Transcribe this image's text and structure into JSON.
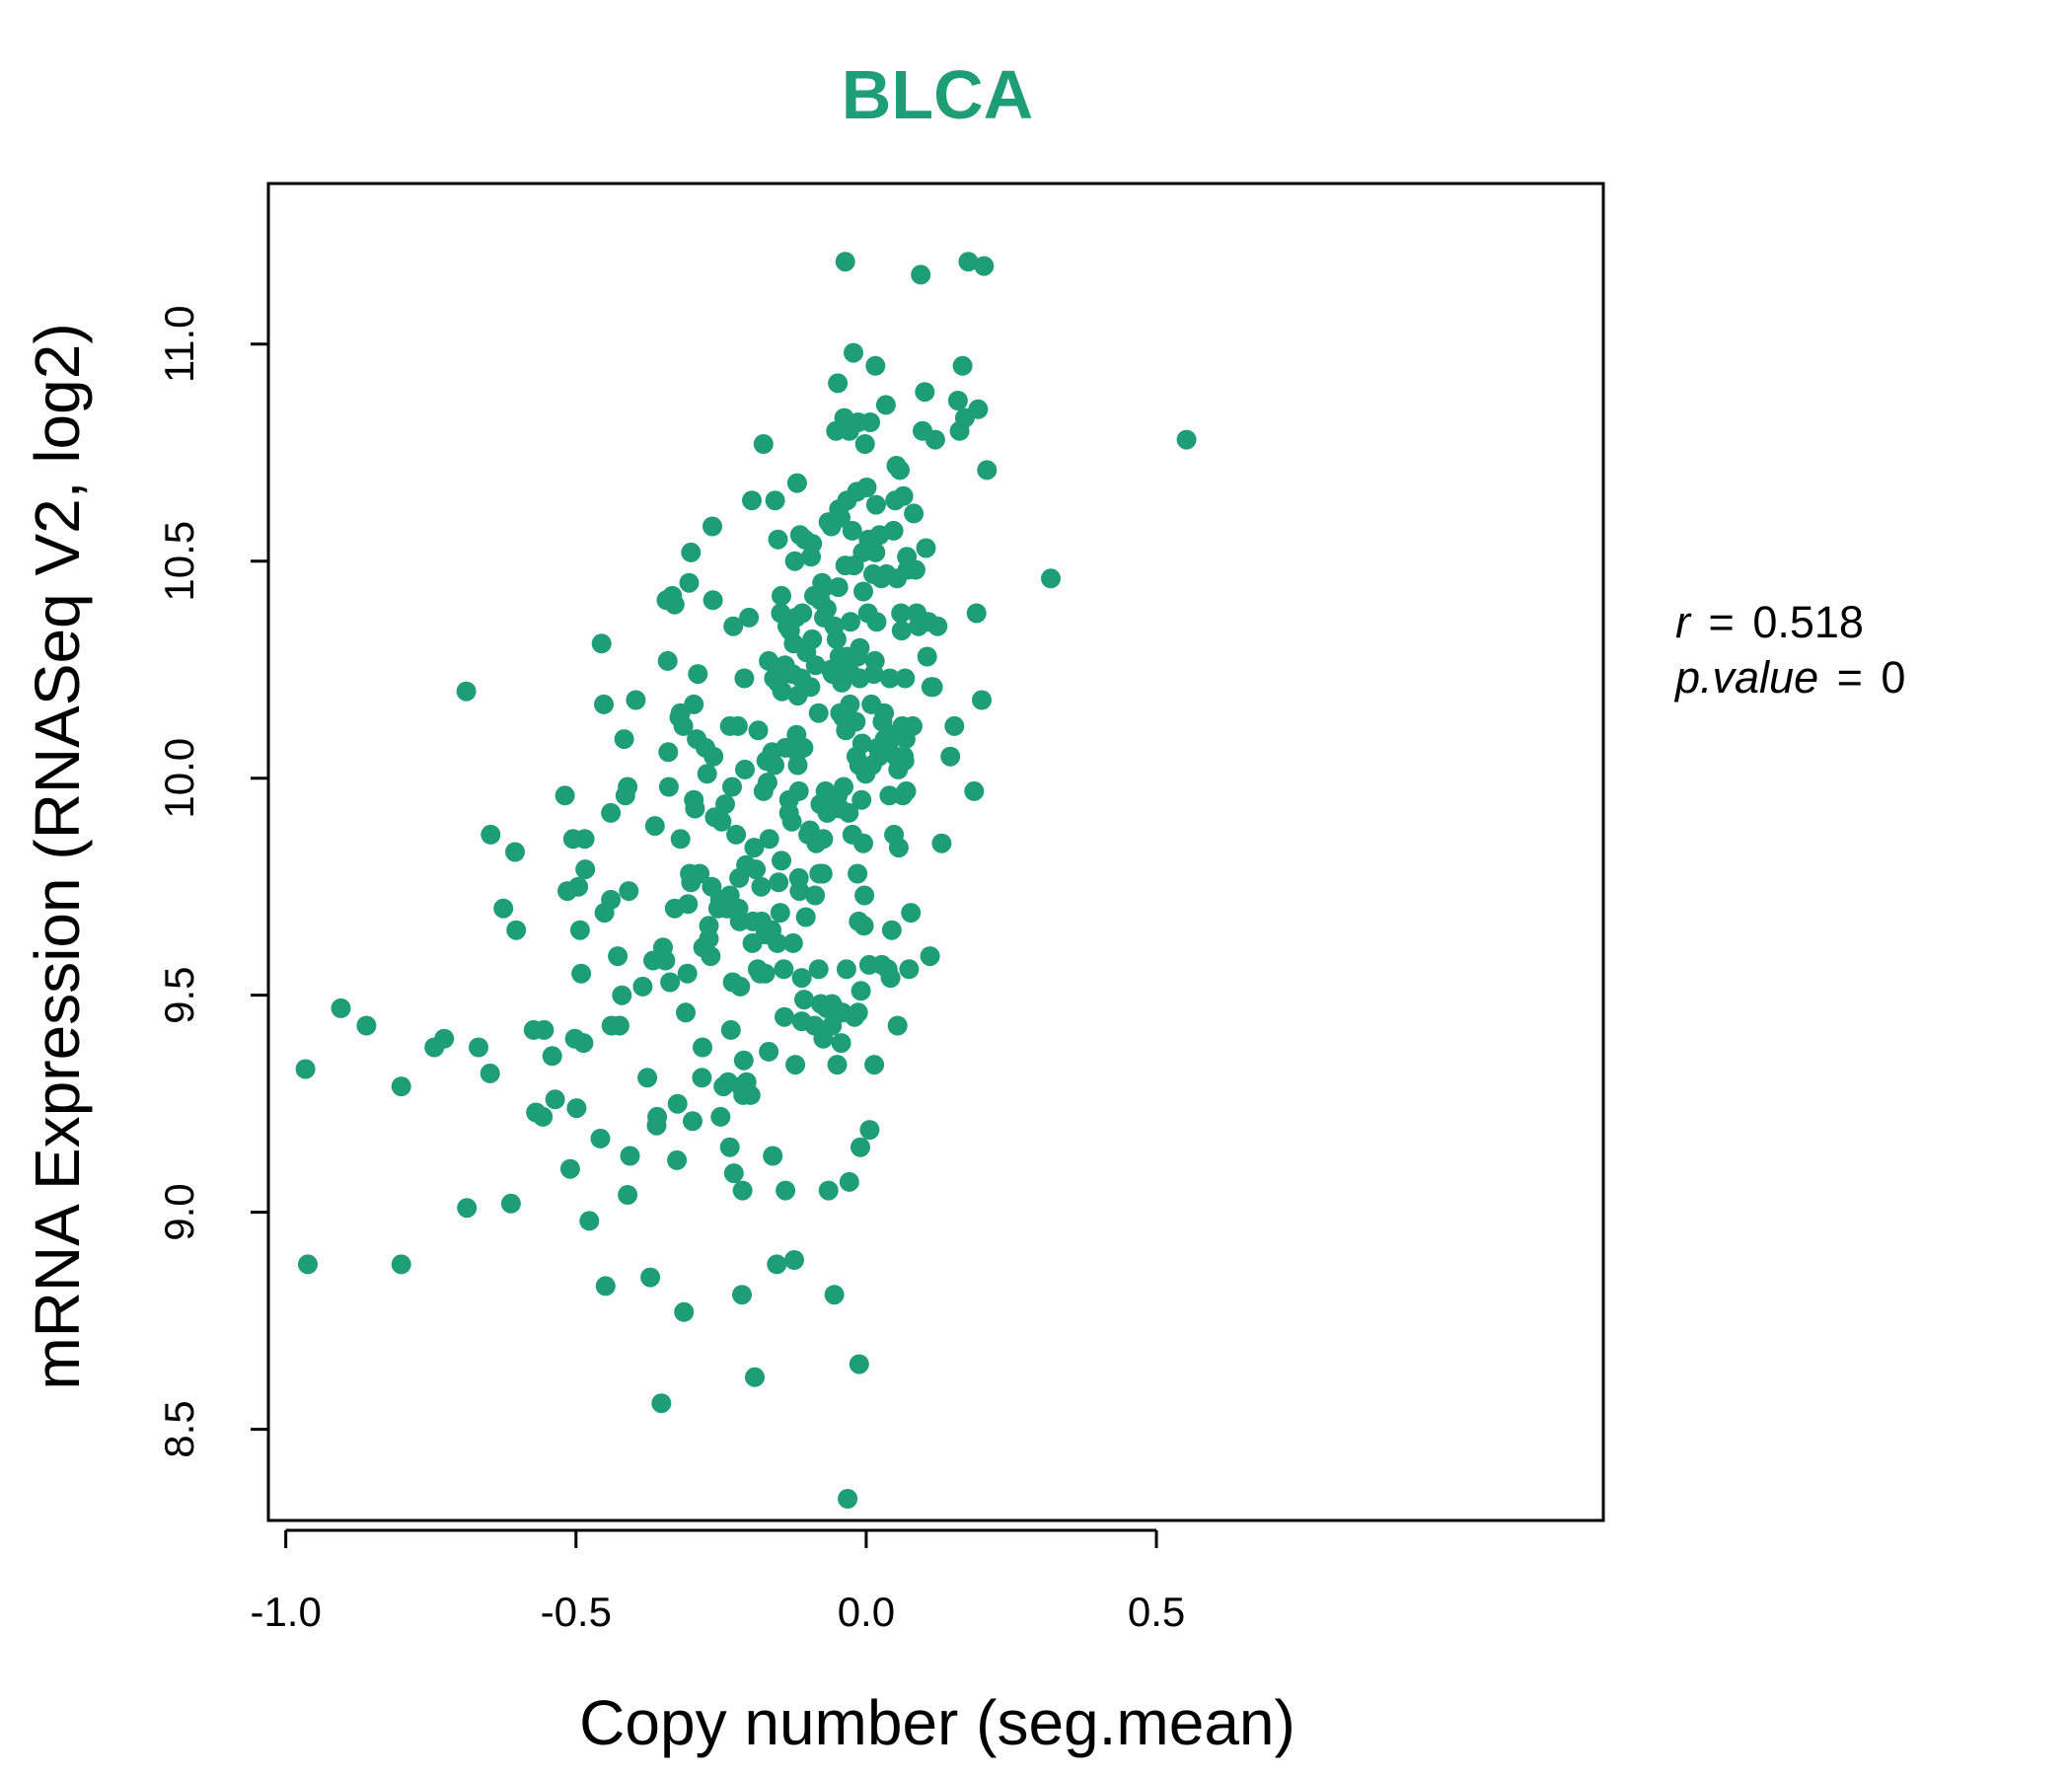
{
  "chart_data": {
    "type": "scatter",
    "title": "BLCA",
    "xlabel": "Copy number (seg.mean)",
    "ylabel": "mRNA Expression (RNASeq V2, log2)",
    "xlim": [
      -1.03,
      1.27
    ],
    "ylim": [
      8.29,
      11.37
    ],
    "x_ticks": [
      -1.0,
      -0.5,
      0.0,
      0.5
    ],
    "x_tick_labels": [
      "-1.0",
      "-0.5",
      "0.0",
      "0.5"
    ],
    "y_ticks": [
      8.5,
      9.0,
      9.5,
      10.0,
      10.5,
      11.0
    ],
    "y_tick_labels": [
      "8.5",
      "9.0",
      "9.5",
      "10.0",
      "10.5",
      "11.0"
    ],
    "grid": false,
    "legend": "none",
    "point_color": "#1E9E74",
    "stats": {
      "r_label": "r",
      "r_value": "0.518",
      "p_label": "p.value",
      "p_value": "0"
    },
    "points": [
      [
        -0.966,
        9.33
      ],
      [
        -0.962,
        8.88
      ],
      [
        -0.905,
        9.47
      ],
      [
        -0.861,
        9.43
      ],
      [
        -0.801,
        9.29
      ],
      [
        -0.801,
        8.88
      ],
      [
        -0.744,
        9.38
      ],
      [
        -0.727,
        9.4
      ],
      [
        -0.689,
        10.2
      ],
      [
        -0.688,
        9.01
      ],
      [
        -0.668,
        9.38
      ],
      [
        -0.648,
        9.32
      ],
      [
        -0.647,
        9.87
      ],
      [
        -0.625,
        9.7
      ],
      [
        -0.612,
        9.02
      ],
      [
        -0.605,
        9.83
      ],
      [
        -0.603,
        9.65
      ],
      [
        -0.573,
        9.42
      ],
      [
        -0.569,
        9.23
      ],
      [
        -0.555,
        9.42
      ],
      [
        -0.557,
        9.22
      ],
      [
        -0.541,
        9.36
      ],
      [
        -0.536,
        9.26
      ],
      [
        -0.519,
        9.96
      ],
      [
        -0.515,
        9.74
      ],
      [
        -0.51,
        9.1
      ],
      [
        -0.505,
        9.86
      ],
      [
        -0.502,
        9.4
      ],
      [
        -0.499,
        9.24
      ],
      [
        -0.496,
        9.75
      ],
      [
        -0.493,
        9.65
      ],
      [
        -0.491,
        9.55
      ],
      [
        -0.487,
        9.39
      ],
      [
        -0.485,
        9.86
      ],
      [
        -0.484,
        9.79
      ],
      [
        -0.477,
        8.98
      ],
      [
        -0.456,
        10.31
      ],
      [
        -0.452,
        10.17
      ],
      [
        -0.458,
        9.17
      ],
      [
        -0.449,
        8.83
      ],
      [
        -0.451,
        9.69
      ],
      [
        -0.44,
        9.92
      ],
      [
        -0.439,
        9.43
      ],
      [
        -0.44,
        9.72
      ],
      [
        -0.425,
        9.43
      ],
      [
        -0.428,
        9.59
      ],
      [
        -0.421,
        9.5
      ],
      [
        -0.417,
        10.09
      ],
      [
        -0.415,
        9.96
      ],
      [
        -0.411,
        9.98
      ],
      [
        -0.409,
        9.74
      ],
      [
        -0.411,
        9.04
      ],
      [
        -0.407,
        9.13
      ],
      [
        -0.397,
        10.18
      ],
      [
        -0.385,
        9.52
      ],
      [
        -0.377,
        9.31
      ],
      [
        -0.372,
        8.85
      ],
      [
        -0.367,
        9.58
      ],
      [
        -0.364,
        9.89
      ],
      [
        -0.361,
        9.2
      ],
      [
        -0.36,
        9.22
      ],
      [
        -0.353,
        8.56
      ],
      [
        -0.35,
        9.61
      ],
      [
        -0.346,
        9.58
      ],
      [
        -0.344,
        10.41
      ],
      [
        -0.342,
        10.27
      ],
      [
        -0.341,
        10.06
      ],
      [
        -0.34,
        9.98
      ],
      [
        -0.338,
        9.53
      ],
      [
        -0.334,
        10.42
      ],
      [
        -0.33,
        10.4
      ],
      [
        -0.33,
        9.7
      ],
      [
        -0.326,
        9.12
      ],
      [
        -0.325,
        9.25
      ],
      [
        -0.322,
        10.14
      ],
      [
        -0.32,
        10.15
      ],
      [
        -0.32,
        9.86
      ],
      [
        -0.315,
        10.12
      ],
      [
        -0.314,
        8.77
      ],
      [
        -0.311,
        9.46
      ],
      [
        -0.308,
        9.55
      ],
      [
        -0.307,
        9.71
      ],
      [
        -0.305,
        10.45
      ],
      [
        -0.304,
        9.78
      ],
      [
        -0.302,
        9.76
      ],
      [
        -0.302,
        10.52
      ],
      [
        -0.299,
        9.21
      ],
      [
        -0.297,
        10.17
      ],
      [
        -0.297,
        9.95
      ],
      [
        -0.295,
        9.93
      ],
      [
        -0.292,
        10.09
      ],
      [
        -0.29,
        10.24
      ],
      [
        -0.287,
        9.78
      ],
      [
        -0.283,
        9.31
      ],
      [
        -0.282,
        9.38
      ],
      [
        -0.281,
        9.61
      ],
      [
        -0.277,
        10.07
      ],
      [
        -0.274,
        10.01
      ],
      [
        -0.271,
        9.63
      ],
      [
        -0.271,
        9.66
      ],
      [
        -0.268,
        9.59
      ],
      [
        -0.266,
        9.75
      ],
      [
        -0.265,
        10.58
      ],
      [
        -0.264,
        10.41
      ],
      [
        -0.263,
        10.05
      ],
      [
        -0.261,
        9.91
      ],
      [
        -0.255,
        9.7
      ],
      [
        -0.252,
        9.72
      ],
      [
        -0.251,
        9.22
      ],
      [
        -0.249,
        9.9
      ],
      [
        -0.246,
        9.29
      ],
      [
        -0.243,
        9.94
      ],
      [
        -0.24,
        9.7
      ],
      [
        -0.238,
        9.3
      ],
      [
        -0.235,
        9.15
      ],
      [
        -0.235,
        10.12
      ],
      [
        -0.235,
        9.73
      ],
      [
        -0.233,
        9.42
      ],
      [
        -0.232,
        9.7
      ],
      [
        -0.231,
        9.98
      ],
      [
        -0.23,
        9.53
      ],
      [
        -0.229,
        10.35
      ],
      [
        -0.228,
        9.09
      ],
      [
        -0.224,
        9.87
      ],
      [
        -0.221,
        10.12
      ],
      [
        -0.22,
        9.7
      ],
      [
        -0.219,
        9.77
      ],
      [
        -0.218,
        9.67
      ],
      [
        -0.217,
        9.52
      ],
      [
        -0.216,
        9.29
      ],
      [
        -0.214,
        8.81
      ],
      [
        -0.213,
        9.05
      ],
      [
        -0.212,
        9.27
      ],
      [
        -0.211,
        9.35
      ],
      [
        -0.21,
        10.23
      ],
      [
        -0.209,
        10.02
      ],
      [
        -0.207,
        9.8
      ],
      [
        -0.206,
        9.3
      ],
      [
        -0.202,
        10.37
      ],
      [
        -0.199,
        9.27
      ],
      [
        -0.197,
        10.64
      ],
      [
        -0.196,
        9.62
      ],
      [
        -0.195,
        9.67
      ],
      [
        -0.193,
        9.84
      ],
      [
        -0.192,
        8.62
      ],
      [
        -0.19,
        9.79
      ],
      [
        -0.187,
        9.56
      ],
      [
        -0.186,
        10.11
      ],
      [
        -0.183,
        9.55
      ],
      [
        -0.18,
        9.67
      ],
      [
        -0.181,
        9.75
      ],
      [
        -0.177,
        10.77
      ],
      [
        -0.177,
        9.97
      ],
      [
        -0.174,
        9.64
      ],
      [
        -0.174,
        9.55
      ],
      [
        -0.172,
        10.04
      ],
      [
        -0.17,
        9.99
      ],
      [
        -0.168,
        10.27
      ],
      [
        -0.167,
        9.86
      ],
      [
        -0.168,
        9.37
      ],
      [
        -0.165,
        9.65
      ],
      [
        -0.163,
        9.65
      ],
      [
        -0.162,
        10.06
      ],
      [
        -0.161,
        9.13
      ],
      [
        -0.159,
        10.23
      ],
      [
        -0.158,
        10.03
      ],
      [
        -0.157,
        10.64
      ],
      [
        -0.154,
        8.88
      ],
      [
        -0.153,
        9.62
      ],
      [
        -0.152,
        10.22
      ],
      [
        -0.152,
        10.55
      ],
      [
        -0.151,
        9.76
      ],
      [
        -0.148,
        9.69
      ],
      [
        -0.147,
        10.38
      ],
      [
        -0.146,
        10.42
      ],
      [
        -0.146,
        9.81
      ],
      [
        -0.145,
        10.2
      ],
      [
        -0.142,
        9.56
      ],
      [
        -0.141,
        9.45
      ],
      [
        -0.14,
        10.26
      ],
      [
        -0.139,
        10.07
      ],
      [
        -0.139,
        9.05
      ],
      [
        -0.136,
        10.35
      ],
      [
        -0.133,
        9.95
      ],
      [
        -0.133,
        9.92
      ],
      [
        -0.131,
        10.34
      ],
      [
        -0.128,
        9.9
      ],
      [
        -0.127,
        10.24
      ],
      [
        -0.125,
        10.31
      ],
      [
        -0.126,
        9.62
      ],
      [
        -0.124,
        8.89
      ],
      [
        -0.123,
        10.5
      ],
      [
        -0.122,
        9.34
      ],
      [
        -0.121,
        10.37
      ],
      [
        -0.12,
        10.1
      ],
      [
        -0.119,
        10.06
      ],
      [
        -0.119,
        10.68
      ],
      [
        -0.118,
        10.03
      ],
      [
        -0.118,
        10.19
      ],
      [
        -0.116,
        9.97
      ],
      [
        -0.116,
        9.77
      ],
      [
        -0.115,
        9.74
      ],
      [
        -0.114,
        10.56
      ],
      [
        -0.112,
        10.23
      ],
      [
        -0.111,
        9.44
      ],
      [
        -0.111,
        9.54
      ],
      [
        -0.11,
        10.38
      ],
      [
        -0.108,
        10.07
      ],
      [
        -0.107,
        9.49
      ],
      [
        -0.106,
        10.55
      ],
      [
        -0.104,
        9.68
      ],
      [
        -0.103,
        10.29
      ],
      [
        -0.1,
        9.87
      ],
      [
        -0.097,
        9.88
      ],
      [
        -0.096,
        10.21
      ],
      [
        -0.095,
        10.51
      ],
      [
        -0.093,
        10.32
      ],
      [
        -0.093,
        10.54
      ],
      [
        -0.09,
        10.42
      ],
      [
        -0.089,
        9.43
      ],
      [
        -0.088,
        9.73
      ],
      [
        -0.087,
        10.26
      ],
      [
        -0.086,
        9.85
      ],
      [
        -0.082,
        10.15
      ],
      [
        -0.082,
        9.56
      ],
      [
        -0.081,
        9.78
      ],
      [
        -0.079,
        9.94
      ],
      [
        -0.079,
        10.41
      ],
      [
        -0.078,
        9.48
      ],
      [
        -0.076,
        10.45
      ],
      [
        -0.075,
        9.78
      ],
      [
        -0.074,
        9.86
      ],
      [
        -0.074,
        9.4
      ],
      [
        -0.073,
        10.37
      ],
      [
        -0.072,
        10.44
      ],
      [
        -0.07,
        9.97
      ],
      [
        -0.068,
        10.39
      ],
      [
        -0.068,
        9.47
      ],
      [
        -0.067,
        9.92
      ],
      [
        -0.065,
        9.05
      ],
      [
        -0.065,
        10.59
      ],
      [
        -0.064,
        9.94
      ],
      [
        -0.061,
        10.25
      ],
      [
        -0.06,
        10.58
      ],
      [
        -0.059,
        9.48
      ],
      [
        -0.059,
        9.43
      ],
      [
        -0.058,
        9.93
      ],
      [
        -0.058,
        10.24
      ],
      [
        -0.055,
        9.47
      ],
      [
        -0.055,
        10.35
      ],
      [
        -0.055,
        8.81
      ],
      [
        -0.052,
        10.8
      ],
      [
        -0.051,
        10.32
      ],
      [
        -0.05,
        9.34
      ],
      [
        -0.049,
        10.91
      ],
      [
        -0.049,
        9.96
      ],
      [
        -0.048,
        10.44
      ],
      [
        -0.047,
        10.62
      ],
      [
        -0.046,
        10.28
      ],
      [
        -0.045,
        10.15
      ],
      [
        -0.045,
        9.93
      ],
      [
        -0.044,
        10.6
      ],
      [
        -0.043,
        9.39
      ],
      [
        -0.042,
        10.22
      ],
      [
        -0.041,
        9.46
      ],
      [
        -0.04,
        10.14
      ],
      [
        -0.039,
        9.98
      ],
      [
        -0.038,
        10.83
      ],
      [
        -0.036,
        10.49
      ],
      [
        -0.036,
        11.19
      ],
      [
        -0.035,
        10.11
      ],
      [
        -0.034,
        9.56
      ],
      [
        -0.033,
        10.28
      ],
      [
        -0.033,
        10.64
      ],
      [
        -0.032,
        8.34
      ],
      [
        -0.031,
        10.26
      ],
      [
        -0.03,
        9.92
      ],
      [
        -0.029,
        9.07
      ],
      [
        -0.029,
        10.8
      ],
      [
        -0.028,
        10.17
      ],
      [
        -0.027,
        10.36
      ],
      [
        -0.026,
        10.24
      ],
      [
        -0.024,
        9.87
      ],
      [
        -0.024,
        10.57
      ],
      [
        -0.022,
        10.98
      ],
      [
        -0.021,
        10.49
      ],
      [
        -0.02,
        9.45
      ],
      [
        -0.018,
        10.13
      ],
      [
        -0.017,
        10.05
      ],
      [
        -0.016,
        10.66
      ],
      [
        -0.015,
        9.78
      ],
      [
        -0.015,
        10.28
      ],
      [
        -0.014,
        9.46
      ],
      [
        -0.014,
        10.82
      ],
      [
        -0.013,
        9.67
      ],
      [
        -0.012,
        8.65
      ],
      [
        -0.012,
        10.03
      ],
      [
        -0.011,
        10.23
      ],
      [
        -0.011,
        10.3
      ],
      [
        -0.01,
        9.15
      ],
      [
        -0.009,
        9.51
      ],
      [
        -0.008,
        9.95
      ],
      [
        -0.007,
        10.08
      ],
      [
        -0.006,
        10.52
      ],
      [
        -0.005,
        10.43
      ],
      [
        -0.005,
        9.85
      ],
      [
        -0.004,
        9.66
      ],
      [
        -0.003,
        9.73
      ],
      [
        -0.002,
        10.77
      ],
      [
        -0.001,
        10.01
      ],
      [
        0.001,
        10.67
      ],
      [
        0.003,
        10.38
      ],
      [
        0.004,
        10.55
      ],
      [
        0.005,
        9.57
      ],
      [
        0.006,
        9.19
      ],
      [
        0.007,
        10.82
      ],
      [
        0.009,
        10.17
      ],
      [
        0.01,
        10.03
      ],
      [
        0.012,
        10.47
      ],
      [
        0.013,
        10.24
      ],
      [
        0.014,
        9.34
      ],
      [
        0.015,
        10.27
      ],
      [
        0.016,
        10.52
      ],
      [
        0.016,
        10.95
      ],
      [
        0.017,
        10.63
      ],
      [
        0.018,
        10.36
      ],
      [
        0.02,
        10.07
      ],
      [
        0.022,
        10.05
      ],
      [
        0.023,
        10.56
      ],
      [
        0.026,
        10.46
      ],
      [
        0.027,
        9.57
      ],
      [
        0.028,
        10.13
      ],
      [
        0.031,
        10.15
      ],
      [
        0.032,
        10.09
      ],
      [
        0.034,
        10.86
      ],
      [
        0.035,
        10.47
      ],
      [
        0.037,
        9.56
      ],
      [
        0.038,
        10.08
      ],
      [
        0.04,
        9.96
      ],
      [
        0.041,
        10.23
      ],
      [
        0.042,
        9.54
      ],
      [
        0.044,
        9.65
      ],
      [
        0.046,
        10.1
      ],
      [
        0.047,
        10.57
      ],
      [
        0.048,
        9.87
      ],
      [
        0.05,
        10.64
      ],
      [
        0.051,
        10.05
      ],
      [
        0.052,
        10.72
      ],
      [
        0.053,
        10.46
      ],
      [
        0.054,
        9.43
      ],
      [
        0.055,
        10.02
      ],
      [
        0.056,
        9.84
      ],
      [
        0.058,
        10.71
      ],
      [
        0.06,
        10.38
      ],
      [
        0.061,
        10.34
      ],
      [
        0.062,
        10.12
      ],
      [
        0.063,
        9.96
      ],
      [
        0.064,
        10.65
      ],
      [
        0.065,
        10.05
      ],
      [
        0.066,
        10.04
      ],
      [
        0.067,
        10.23
      ],
      [
        0.068,
        10.09
      ],
      [
        0.069,
        9.97
      ],
      [
        0.07,
        10.51
      ],
      [
        0.071,
        10.48
      ],
      [
        0.074,
        9.56
      ],
      [
        0.077,
        9.69
      ],
      [
        0.08,
        10.12
      ],
      [
        0.082,
        10.61
      ],
      [
        0.085,
        10.48
      ],
      [
        0.087,
        10.38
      ],
      [
        0.09,
        10.35
      ],
      [
        0.094,
        11.16
      ],
      [
        0.097,
        10.8
      ],
      [
        0.101,
        10.89
      ],
      [
        0.103,
        10.53
      ],
      [
        0.105,
        10.28
      ],
      [
        0.107,
        10.36
      ],
      [
        0.11,
        9.59
      ],
      [
        0.112,
        10.21
      ],
      [
        0.115,
        10.21
      ],
      [
        0.119,
        10.78
      ],
      [
        0.123,
        10.35
      ],
      [
        0.13,
        9.85
      ],
      [
        0.145,
        10.05
      ],
      [
        0.152,
        10.12
      ],
      [
        0.158,
        10.87
      ],
      [
        0.161,
        10.8
      ],
      [
        0.166,
        10.95
      ],
      [
        0.17,
        10.83
      ],
      [
        0.176,
        11.19
      ],
      [
        0.186,
        9.97
      ],
      [
        0.19,
        10.38
      ],
      [
        0.193,
        10.85
      ],
      [
        0.199,
        10.18
      ],
      [
        0.203,
        11.18
      ],
      [
        0.208,
        10.71
      ],
      [
        0.318,
        10.46
      ],
      [
        0.552,
        10.78
      ]
    ]
  }
}
